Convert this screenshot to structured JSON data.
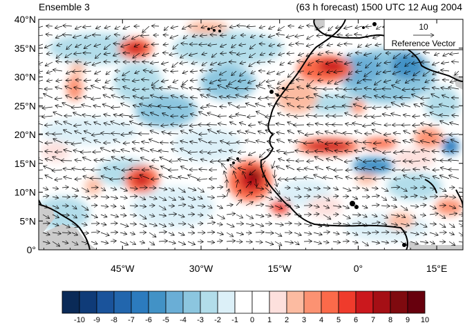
{
  "header": {
    "ensemble": "Ensemble 3",
    "forecast": "(63 h forecast) 1500 UTC 12 Aug 2004"
  },
  "legend": {
    "value": "10",
    "caption": "Reference Vector"
  },
  "map": {
    "lat_labels": [
      "40°N",
      "35°N",
      "30°N",
      "25°N",
      "20°N",
      "15°N",
      "10°N",
      "5°N",
      "0°"
    ],
    "lon_labels": [
      "45°W",
      "30°W",
      "15°W",
      "0°",
      "15°E"
    ],
    "lon_range": [
      -61,
      20
    ],
    "lat_range": [
      0,
      40
    ],
    "land_color": "#cccccc",
    "colorbar": {
      "labels": [
        "-10",
        "-9",
        "-8",
        "-7",
        "-6",
        "-5",
        "-4",
        "-3",
        "-2",
        "-1",
        "0",
        "1",
        "2",
        "3",
        "4",
        "5",
        "6",
        "7",
        "8",
        "9",
        "10"
      ],
      "colors": [
        "#0a2a57",
        "#0f3b78",
        "#1a539b",
        "#2266ad",
        "#2c7bbe",
        "#4292c6",
        "#6aaed6",
        "#8cc6df",
        "#b2ddea",
        "#dcf0f8",
        "#ffffff",
        "#ffffff",
        "#fde0dd",
        "#fcbba1",
        "#fc9272",
        "#fb6a4a",
        "#ef3b2c",
        "#cb181d",
        "#a50f15",
        "#7f0a0f",
        "#67000d"
      ]
    }
  }
}
